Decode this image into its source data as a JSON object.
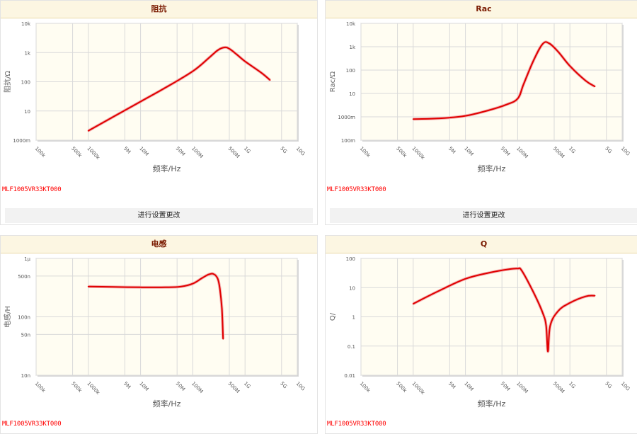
{
  "charts": [
    {
      "id": "impedance",
      "title": "阻抗",
      "ylabel": "阻抗/Ω",
      "xlabel": "频率/Hz",
      "part_no": "MLF1005VR33KT000",
      "settings_label": "进行设置更改",
      "line_color": "#e00000",
      "chart_data": {
        "type": "line",
        "x_scale": "log",
        "y_scale": "log",
        "xlim": [
          100000,
          10000000000
        ],
        "ylim": [
          1,
          10000
        ],
        "x_ticks": [
          {
            "v": 100000,
            "label": "100k"
          },
          {
            "v": 500000,
            "label": "500k"
          },
          {
            "v": 1000000,
            "label": "1000k"
          },
          {
            "v": 5000000,
            "label": "5M"
          },
          {
            "v": 10000000,
            "label": "10M"
          },
          {
            "v": 50000000,
            "label": "50M"
          },
          {
            "v": 100000000,
            "label": "100M"
          },
          {
            "v": 500000000,
            "label": "500M"
          },
          {
            "v": 1000000000,
            "label": "1G"
          },
          {
            "v": 5000000000,
            "label": "5G"
          },
          {
            "v": 10000000000,
            "label": "10G"
          }
        ],
        "y_ticks": [
          {
            "v": 1,
            "label": "1000m"
          },
          {
            "v": 10,
            "label": "10"
          },
          {
            "v": 100,
            "label": "100"
          },
          {
            "v": 1000,
            "label": "1k"
          },
          {
            "v": 10000,
            "label": "10k"
          }
        ],
        "x": [
          1000000,
          3000000,
          10000000,
          30000000,
          100000000,
          200000000,
          300000000,
          400000000,
          500000000,
          700000000,
          1000000000,
          2000000000,
          3000000000
        ],
        "y": [
          2.1,
          6.3,
          21,
          63,
          230,
          640,
          1200,
          1500,
          1350,
          850,
          500,
          210,
          115
        ]
      }
    },
    {
      "id": "rac",
      "title": "Rac",
      "ylabel": "Rac/Ω",
      "xlabel": "频率/Hz",
      "part_no": "MLF1005VR33KT000",
      "settings_label": "进行设置更改",
      "line_color": "#e00000",
      "chart_data": {
        "type": "line",
        "x_scale": "log",
        "y_scale": "log",
        "xlim": [
          100000,
          10000000000
        ],
        "ylim": [
          0.1,
          10000
        ],
        "x_ticks": [
          {
            "v": 100000,
            "label": "100k"
          },
          {
            "v": 500000,
            "label": "500k"
          },
          {
            "v": 1000000,
            "label": "1000k"
          },
          {
            "v": 5000000,
            "label": "5M"
          },
          {
            "v": 10000000,
            "label": "10M"
          },
          {
            "v": 50000000,
            "label": "50M"
          },
          {
            "v": 100000000,
            "label": "100M"
          },
          {
            "v": 500000000,
            "label": "500M"
          },
          {
            "v": 1000000000,
            "label": "1G"
          },
          {
            "v": 5000000000,
            "label": "5G"
          },
          {
            "v": 10000000000,
            "label": "10G"
          }
        ],
        "y_ticks": [
          {
            "v": 0.1,
            "label": "100m"
          },
          {
            "v": 1,
            "label": "1000m"
          },
          {
            "v": 10,
            "label": "10"
          },
          {
            "v": 100,
            "label": "100"
          },
          {
            "v": 1000,
            "label": "1k"
          },
          {
            "v": 10000,
            "label": "10k"
          }
        ],
        "x": [
          1000000,
          3000000,
          10000000,
          30000000,
          60000000,
          100000000,
          130000000,
          200000000,
          300000000,
          400000000,
          600000000,
          1000000000,
          2000000000,
          3000000000
        ],
        "y": [
          0.8,
          0.85,
          1.1,
          2.0,
          3.3,
          6.0,
          25,
          250,
          1300,
          1400,
          600,
          150,
          35,
          20
        ]
      }
    },
    {
      "id": "inductance",
      "title": "电感",
      "ylabel": "电感/H",
      "xlabel": "频率/Hz",
      "part_no": "MLF1005VR33KT000",
      "settings_label": "",
      "line_color": "#e00000",
      "chart_data": {
        "type": "line",
        "x_scale": "log",
        "y_scale": "log",
        "xlim": [
          100000,
          10000000000
        ],
        "ylim": [
          1e-08,
          1e-06
        ],
        "x_ticks": [
          {
            "v": 100000,
            "label": "100k"
          },
          {
            "v": 500000,
            "label": "500k"
          },
          {
            "v": 1000000,
            "label": "1000k"
          },
          {
            "v": 5000000,
            "label": "5M"
          },
          {
            "v": 10000000,
            "label": "10M"
          },
          {
            "v": 50000000,
            "label": "50M"
          },
          {
            "v": 100000000,
            "label": "100M"
          },
          {
            "v": 500000000,
            "label": "500M"
          },
          {
            "v": 1000000000,
            "label": "1G"
          },
          {
            "v": 5000000000,
            "label": "5G"
          },
          {
            "v": 10000000000,
            "label": "10G"
          }
        ],
        "y_ticks": [
          {
            "v": 1e-08,
            "label": "10n"
          },
          {
            "v": 5e-08,
            "label": "50n"
          },
          {
            "v": 1e-07,
            "label": "100n"
          },
          {
            "v": 5e-07,
            "label": "500n"
          },
          {
            "v": 1e-06,
            "label": "1μ"
          }
        ],
        "x": [
          1000000,
          3000000,
          10000000,
          30000000,
          60000000,
          100000000,
          150000000,
          200000000,
          250000000,
          300000000,
          330000000,
          360000000,
          380000000
        ],
        "y": [
          3.3e-07,
          3.25e-07,
          3.2e-07,
          3.2e-07,
          3.3e-07,
          3.7e-07,
          4.6e-07,
          5.3e-07,
          5.4e-07,
          4.5e-07,
          3e-07,
          1.4e-07,
          4.2e-08
        ]
      }
    },
    {
      "id": "q",
      "title": "Q",
      "ylabel": "Q/",
      "xlabel": "频率/Hz",
      "part_no": "MLF1005VR33KT000",
      "settings_label": "",
      "line_color": "#e00000",
      "chart_data": {
        "type": "line",
        "x_scale": "log",
        "y_scale": "log",
        "xlim": [
          100000,
          10000000000
        ],
        "ylim": [
          0.01,
          100
        ],
        "x_ticks": [
          {
            "v": 100000,
            "label": "100k"
          },
          {
            "v": 500000,
            "label": "500k"
          },
          {
            "v": 1000000,
            "label": "1000k"
          },
          {
            "v": 5000000,
            "label": "5M"
          },
          {
            "v": 10000000,
            "label": "10M"
          },
          {
            "v": 50000000,
            "label": "50M"
          },
          {
            "v": 100000000,
            "label": "100M"
          },
          {
            "v": 500000000,
            "label": "500M"
          },
          {
            "v": 1000000000,
            "label": "1G"
          },
          {
            "v": 5000000000,
            "label": "5G"
          },
          {
            "v": 10000000000,
            "label": "10G"
          }
        ],
        "y_ticks": [
          {
            "v": 0.01,
            "label": "0.01"
          },
          {
            "v": 0.1,
            "label": "0.1"
          },
          {
            "v": 1,
            "label": "1"
          },
          {
            "v": 10,
            "label": "10"
          },
          {
            "v": 100,
            "label": "100"
          }
        ],
        "x": [
          1000000,
          3000000,
          10000000,
          30000000,
          70000000,
          100000000,
          120000000,
          200000000,
          300000000,
          350000000,
          380000000,
          420000000,
          600000000,
          1000000000,
          2000000000,
          3000000000
        ],
        "y": [
          2.8,
          7.5,
          20,
          33,
          43,
          45,
          38,
          7,
          1.4,
          0.5,
          0.065,
          0.5,
          1.6,
          3.0,
          5.0,
          5.3
        ]
      }
    }
  ]
}
